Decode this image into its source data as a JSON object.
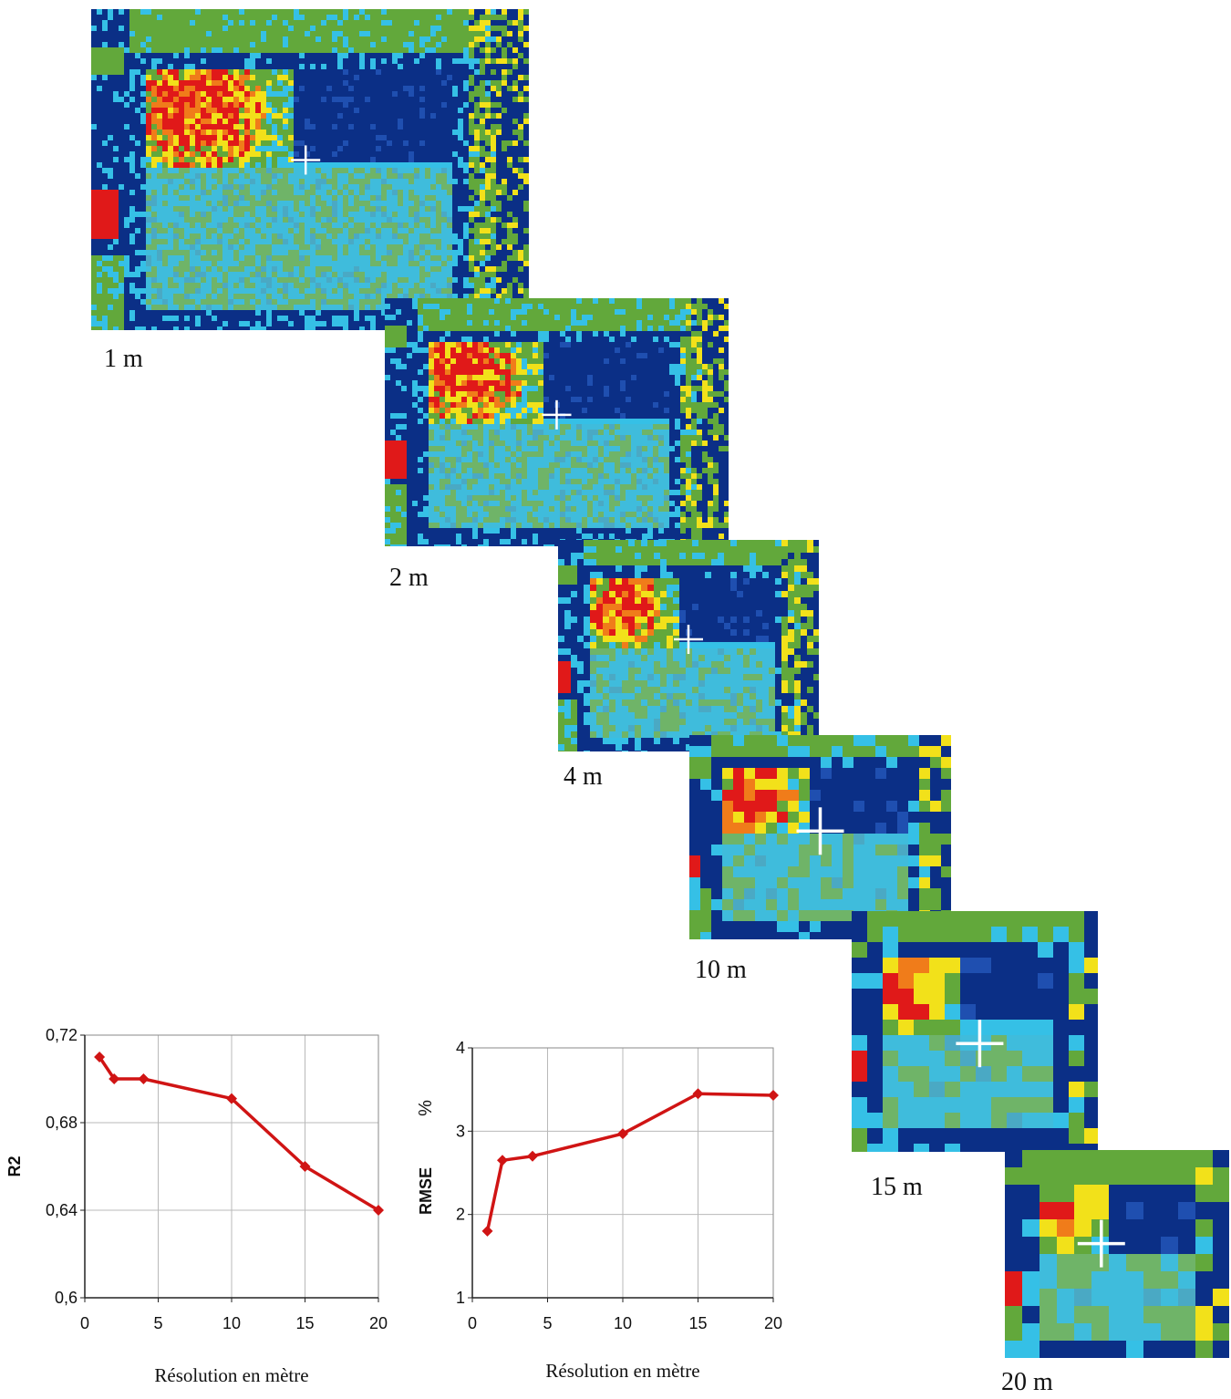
{
  "colors": {
    "series": "#d01414",
    "dark_blue": "#0b2f86",
    "light_blue": "#35c0e6",
    "green": "#62a83b",
    "yellow": "#f2e11a",
    "orange": "#f07c1a",
    "red": "#e01919"
  },
  "maps": [
    {
      "label": "1 m",
      "icon": "crosshair-icon"
    },
    {
      "label": "2 m",
      "icon": "crosshair-icon"
    },
    {
      "label": "4 m",
      "icon": "crosshair-icon"
    },
    {
      "label": "10 m",
      "icon": "crosshair-icon"
    },
    {
      "label": "15 m",
      "icon": "crosshair-icon"
    },
    {
      "label": "20 m",
      "icon": "crosshair-icon"
    }
  ],
  "chart_data": [
    {
      "type": "line",
      "x": [
        1,
        2,
        4,
        10,
        15,
        20
      ],
      "y": [
        0.71,
        0.7,
        0.7,
        0.691,
        0.66,
        0.64
      ],
      "xlabel": "Résolution en mètre",
      "ylabel": "R2",
      "xlim": [
        0,
        20
      ],
      "ylim": [
        0.6,
        0.72
      ],
      "xticks": [
        0,
        5,
        10,
        15,
        20
      ],
      "xtick_labels": [
        "0",
        "5",
        "10",
        "15",
        "20"
      ],
      "yticks": [
        0.6,
        0.64,
        0.68,
        0.72
      ],
      "ytick_labels": [
        "0,6",
        "0,64",
        "0,68",
        "0,72"
      ],
      "grid": true,
      "marker": "diamond"
    },
    {
      "type": "line",
      "x": [
        1,
        2,
        4,
        10,
        15,
        20
      ],
      "y": [
        1.8,
        2.65,
        2.7,
        2.97,
        3.45,
        3.43
      ],
      "xlabel": "Résolution en mètre",
      "ylabel": "RMSE",
      "yunit": "%",
      "xlim": [
        0,
        20
      ],
      "ylim": [
        1,
        4
      ],
      "xticks": [
        0,
        5,
        10,
        15,
        20
      ],
      "xtick_labels": [
        "0",
        "5",
        "10",
        "15",
        "20"
      ],
      "yticks": [
        1,
        2,
        3,
        4
      ],
      "ytick_labels": [
        "1",
        "2",
        "3",
        "4"
      ],
      "grid": true,
      "marker": "diamond"
    }
  ]
}
